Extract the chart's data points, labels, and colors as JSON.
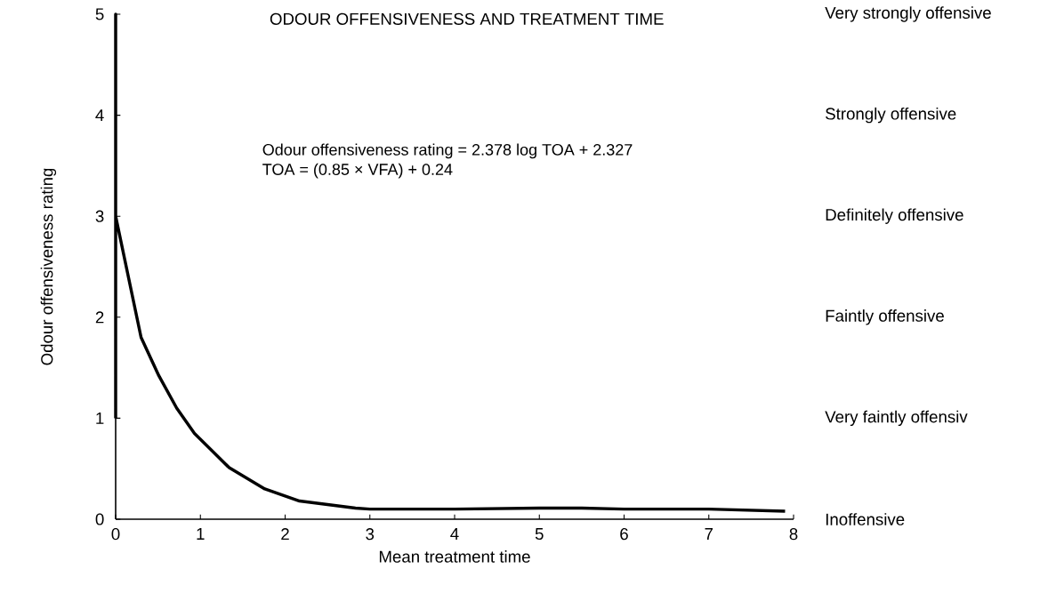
{
  "chart_data": {
    "type": "line",
    "title": "ODOUR OFFENSIVENESS AND TREATMENT TIME",
    "xlabel": "Mean treatment time",
    "ylabel": "Odour offensiveness rating",
    "annotations": [
      "Odour offensiveness rating = 2.378 log TOA + 2.327",
      "TOA = (0.85 × VFA) + 0.24",
      "Very strongly offensive",
      "Strongly offensive",
      "Definitely offensive",
      "Faintly offensive",
      "Very faintly offensiv",
      "Inoffensive"
    ],
    "series": [
      {
        "color": "#000000",
        "x": [
          0,
          0,
          0,
          0.04,
          0.3,
          0.51,
          0.72,
          0.93,
          1.34,
          1.76,
          2.17,
          2.83,
          3,
          4,
          5,
          5.5,
          6,
          7,
          7.9
        ],
        "values": [
          1,
          5,
          3,
          2.84,
          1.8,
          1.42,
          1.1,
          0.85,
          0.51,
          0.3,
          0.18,
          0.11,
          0.1,
          0.1,
          0.11,
          0.11,
          0.1,
          0.1,
          0.08
        ]
      }
    ],
    "xlim": [
      0,
      8
    ],
    "xticks": [
      0,
      1,
      2,
      3,
      4,
      5,
      6,
      7,
      8
    ],
    "ylim": [
      0,
      5
    ],
    "yticks": [
      0,
      1,
      2,
      3,
      4,
      5
    ],
    "marker": "none",
    "line_style": "solid"
  }
}
